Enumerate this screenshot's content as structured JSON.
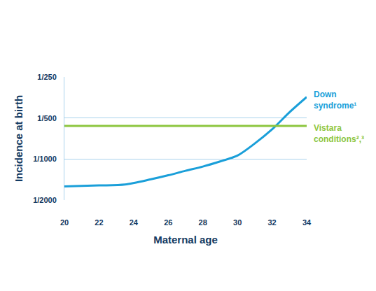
{
  "chart_data": {
    "type": "line",
    "x_label": "Maternal age",
    "y_label": "Incidence at birth",
    "log": "y",
    "grid": true,
    "xlim": [
      20,
      34
    ],
    "xticks": [
      20,
      22,
      24,
      26,
      28,
      30,
      32,
      34
    ],
    "ylim": [
      0.0005,
      0.004
    ],
    "yticks": [
      {
        "value": 0.0005,
        "label": "1/2000"
      },
      {
        "value": 0.001,
        "label": "1/1000"
      },
      {
        "value": 0.002,
        "label": "1/500"
      },
      {
        "value": 0.004,
        "label": "1/250"
      }
    ],
    "series": [
      {
        "name": "Down syndrome¹",
        "color": "#1a9fd9",
        "x": [
          20,
          22,
          23.5,
          25,
          26,
          27,
          28,
          29,
          30,
          31,
          32,
          33,
          34
        ],
        "values": [
          0.00063,
          0.00064,
          0.00065,
          0.00071,
          0.00076,
          0.00082,
          0.00088,
          0.00096,
          0.00106,
          0.0013,
          0.00165,
          0.0022,
          0.00285
        ]
      },
      {
        "name": "Vistara conditions²,³",
        "color": "#8dc63f",
        "x": [
          20,
          34
        ],
        "values": [
          0.00175,
          0.00175
        ]
      }
    ]
  }
}
